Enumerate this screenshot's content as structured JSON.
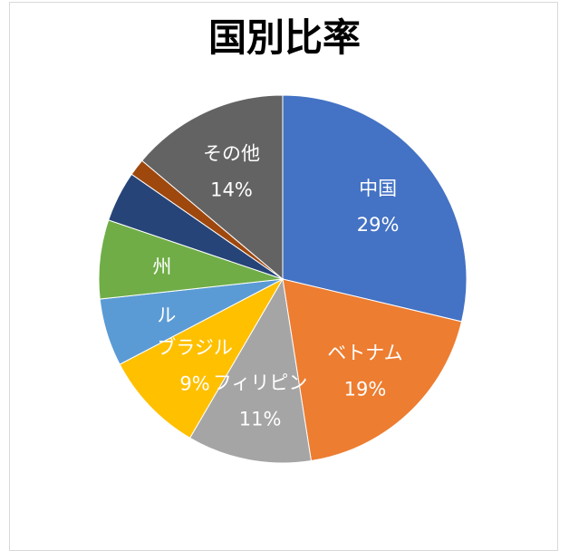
{
  "chart_data": {
    "type": "pie",
    "title": "国別比率",
    "slices": [
      {
        "label": "中国",
        "value": 29,
        "value_label": "29%",
        "color": "#4472c4"
      },
      {
        "label": "ベトナム",
        "value": 19,
        "value_label": "19%",
        "color": "#ed7d31"
      },
      {
        "label": "フィリピン",
        "value": 11,
        "value_label": "11%",
        "color": "#a5a5a5"
      },
      {
        "label": "ブラジル",
        "value": 9,
        "value_label": "9%",
        "color": "#ffc000"
      },
      {
        "label": "ル",
        "value": 6,
        "value_label": "",
        "color": "#5b9bd5"
      },
      {
        "label": "州",
        "value": 7,
        "value_label": "",
        "color": "#70ad47"
      },
      {
        "label": "",
        "value": 4.5,
        "value_label": "",
        "color": "#264478"
      },
      {
        "label": "",
        "value": 1.5,
        "value_label": "",
        "color": "#9e480e"
      },
      {
        "label": "その他",
        "value": 14,
        "value_label": "14%",
        "color": "#636363"
      }
    ],
    "start_angle_deg": 0,
    "direction": "clockwise",
    "legend": "none"
  }
}
